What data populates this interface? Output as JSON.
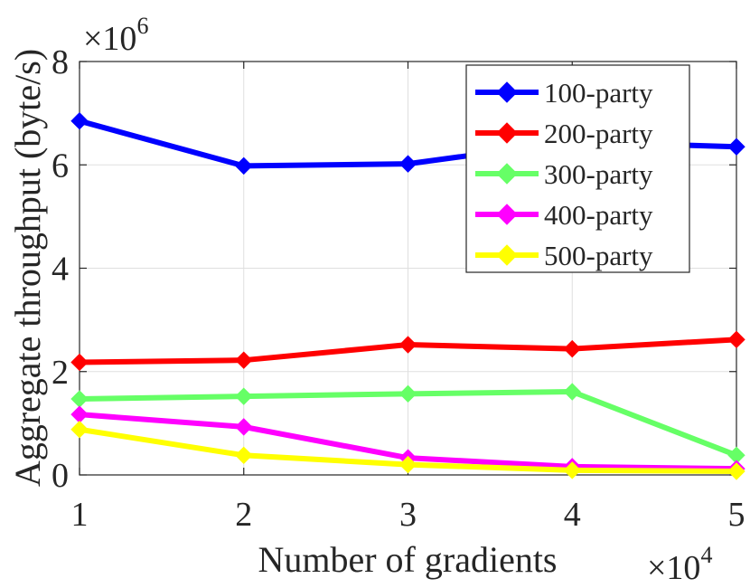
{
  "chart_data": {
    "type": "line",
    "xlabel": "Number of gradients",
    "ylabel": "Aggregate throughput (byte/s)",
    "x_multiplier": {
      "base": "×10",
      "exponent": "4"
    },
    "y_multiplier": {
      "base": "×10",
      "exponent": "6"
    },
    "x": [
      1,
      2,
      3,
      4,
      5
    ],
    "xlim": [
      1,
      5
    ],
    "ylim": [
      0,
      8
    ],
    "xticks": [
      "1",
      "2",
      "3",
      "4",
      "5"
    ],
    "yticks": [
      "0",
      "2",
      "4",
      "6",
      "8"
    ],
    "grid": true,
    "legend_position": "top-right",
    "marker": "diamond",
    "series": [
      {
        "name": "100-party",
        "color": "#0000ff",
        "values": [
          6.85,
          5.98,
          6.02,
          6.45,
          6.35
        ]
      },
      {
        "name": "200-party",
        "color": "#ff0000",
        "values": [
          2.18,
          2.22,
          2.52,
          2.44,
          2.62
        ]
      },
      {
        "name": "300-party",
        "color": "#66ff66",
        "values": [
          1.47,
          1.52,
          1.57,
          1.61,
          0.38
        ]
      },
      {
        "name": "400-party",
        "color": "#ff00ff",
        "values": [
          1.17,
          0.93,
          0.33,
          0.16,
          0.12
        ]
      },
      {
        "name": "500-party",
        "color": "#ffff00",
        "values": [
          0.88,
          0.38,
          0.2,
          0.09,
          0.07
        ]
      }
    ]
  }
}
